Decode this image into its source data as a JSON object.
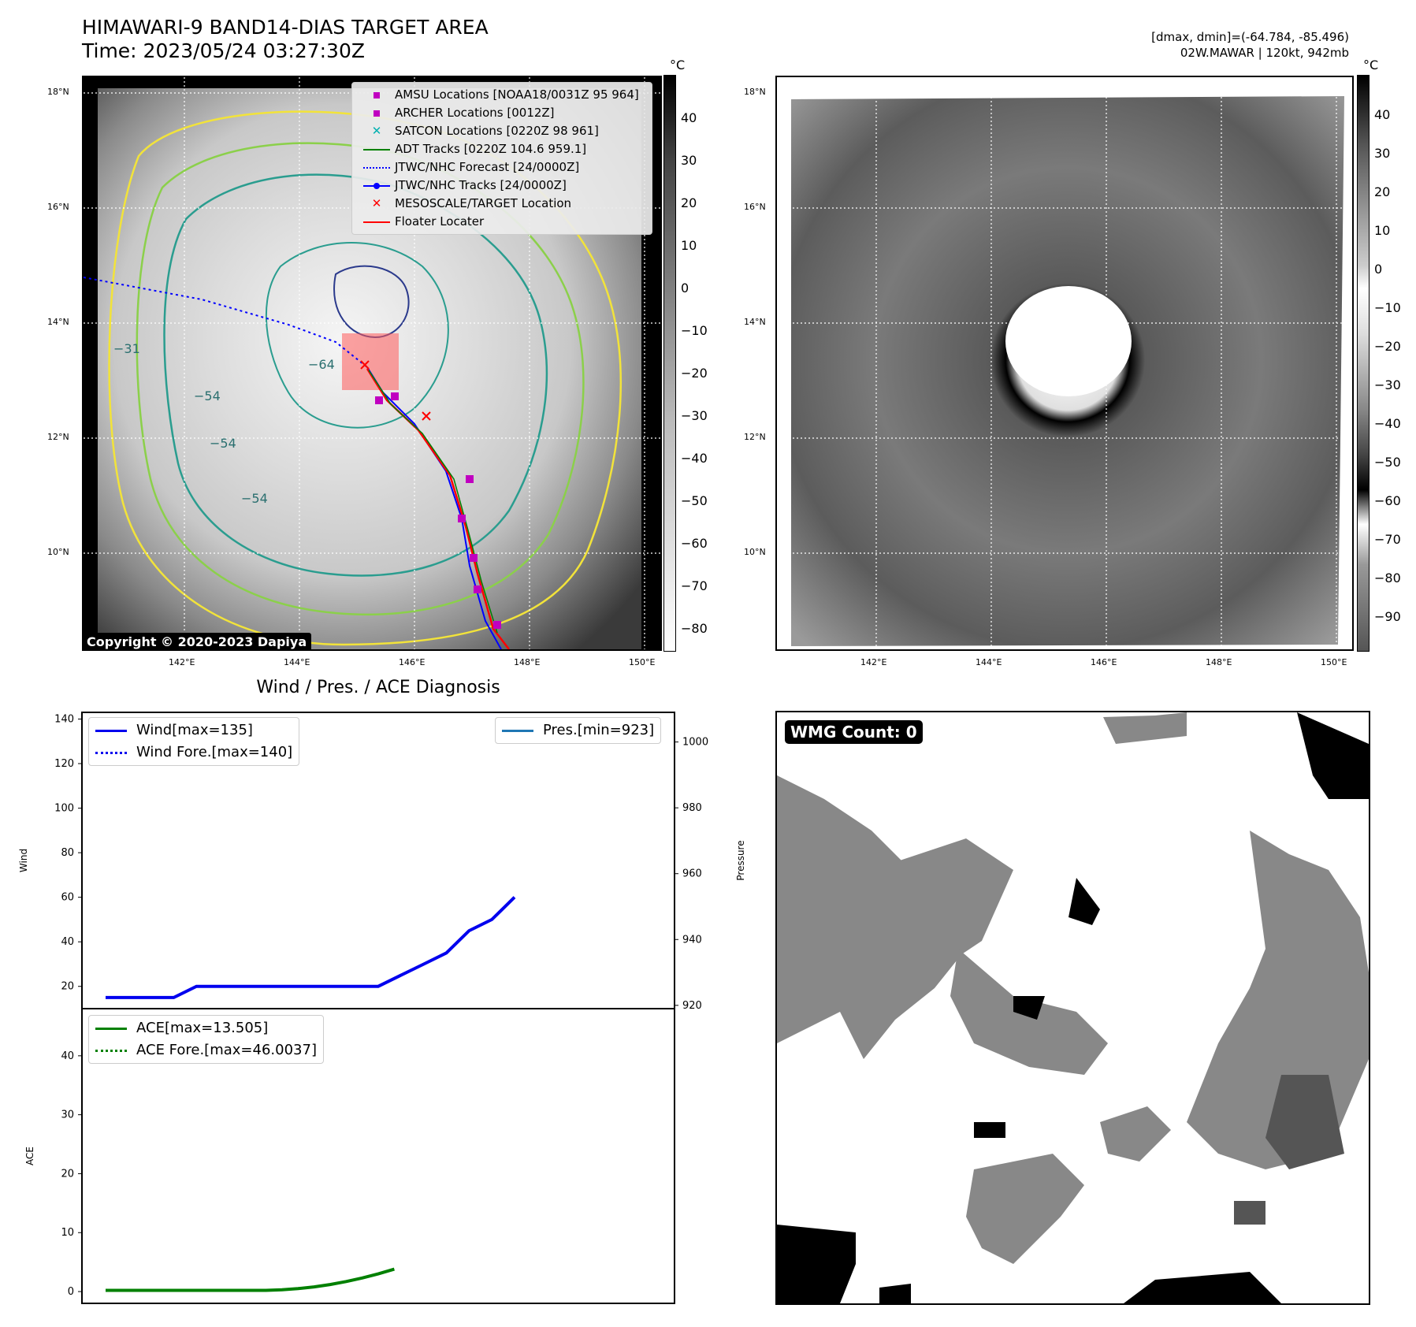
{
  "header": {
    "title_line1": "HIMAWARI-9 BAND14-DIAS TARGET AREA",
    "title_line2": "Time: 2023/05/24 03:27:30Z",
    "right_line1": "[dmax, dmin]=(-64.784, -85.496)",
    "right_line2": "02W.MAWAR | 120kt, 942mb"
  },
  "map": {
    "lat_ticks": [
      "18°N",
      "16°N",
      "14°N",
      "12°N",
      "10°N"
    ],
    "lon_ticks": [
      "142°E",
      "144°E",
      "146°E",
      "148°E",
      "150°E"
    ],
    "colorbar_unit": "°C",
    "colorbar_ticks": [
      "40",
      "30",
      "20",
      "10",
      "0",
      "−10",
      "−20",
      "−30",
      "−40",
      "−50",
      "−60",
      "−70",
      "−80"
    ],
    "colorbar2_ticks": [
      "40",
      "30",
      "20",
      "10",
      "0",
      "−10",
      "−20",
      "−30",
      "−40",
      "−50",
      "−60",
      "−70",
      "−80",
      "−90"
    ],
    "contour_labels": [
      "−64",
      "−54",
      "−54",
      "−54",
      "−31"
    ],
    "copyright": "Copyright © 2020-2023 Dapiya",
    "legend": [
      {
        "label": "AMSU Locations [NOAA18/0031Z 95 964]",
        "symbol": "square",
        "color": "#c000c0"
      },
      {
        "label": "ARCHER Locations [0012Z]",
        "symbol": "square",
        "color": "#c000c0"
      },
      {
        "label": "SATCON Locations [0220Z 98 961]",
        "symbol": "x",
        "color": "#00b0b0"
      },
      {
        "label": "ADT Tracks [0220Z 104.6 959.1]",
        "symbol": "line",
        "color": "#008000"
      },
      {
        "label": "JTWC/NHC Forecast [24/0000Z]",
        "symbol": "dotted",
        "color": "#0000ff"
      },
      {
        "label": "JTWC/NHC Tracks [24/0000Z]",
        "symbol": "dotline",
        "color": "#0000ff"
      },
      {
        "label": "MESOSCALE/TARGET Location",
        "symbol": "x",
        "color": "#ff0000"
      },
      {
        "label": "Floater Locater",
        "symbol": "line",
        "color": "#ff0000"
      }
    ]
  },
  "wmg": {
    "label": "WMG Count: 0"
  },
  "diag_title": "Wind / Pres. / ACE Diagnosis",
  "chart_data": [
    {
      "type": "line",
      "title": "Wind / Pres. / ACE Diagnosis",
      "ylabel": "Wind",
      "y2label": "Pressure",
      "ylim": [
        10,
        143
      ],
      "y2lim": [
        919,
        1009
      ],
      "yticks": [
        "140",
        "120",
        "100",
        "80",
        "60",
        "40",
        "20"
      ],
      "y2ticks": [
        "1000",
        "980",
        "960",
        "940",
        "920"
      ],
      "series": [
        {
          "name": "Wind[max=135]",
          "color": "#0000ee",
          "style": "solid",
          "axis": "left",
          "x": [
            0,
            1,
            2,
            3,
            4,
            5,
            6,
            7,
            8,
            9,
            10,
            11,
            12,
            13,
            14,
            15,
            16,
            17,
            18
          ],
          "values": [
            15,
            15,
            15,
            15,
            20,
            20,
            20,
            20,
            20,
            20,
            20,
            20,
            20,
            25,
            30,
            35,
            45,
            50,
            60
          ]
        },
        {
          "name": "Wind Fore.[max=140]",
          "color": "#0000ee",
          "style": "dotted",
          "axis": "left",
          "x": [],
          "values": []
        },
        {
          "name": "Pres.[min=923]",
          "color": "#1f77b4",
          "style": "solid",
          "axis": "right",
          "x": [],
          "values": []
        }
      ]
    },
    {
      "type": "line",
      "ylabel": "ACE",
      "ylim": [
        -2,
        48
      ],
      "yticks": [
        "40",
        "30",
        "20",
        "10",
        "0"
      ],
      "series": [
        {
          "name": "ACE[max=13.505]",
          "color": "#008000",
          "style": "solid",
          "x": [
            0,
            2,
            4,
            6,
            8,
            10,
            12,
            14,
            16,
            18,
            20,
            22,
            24,
            26,
            28,
            30,
            32,
            34,
            36
          ],
          "values": [
            0.2,
            0.2,
            0.2,
            0.2,
            0.2,
            0.2,
            0.2,
            0.2,
            0.2,
            0.2,
            0.2,
            0.3,
            0.5,
            0.8,
            1.2,
            1.7,
            2.3,
            3.0,
            3.8
          ]
        },
        {
          "name": "ACE Fore.[max=46.0037]",
          "color": "#008000",
          "style": "dotted",
          "x": [],
          "values": []
        }
      ]
    }
  ]
}
